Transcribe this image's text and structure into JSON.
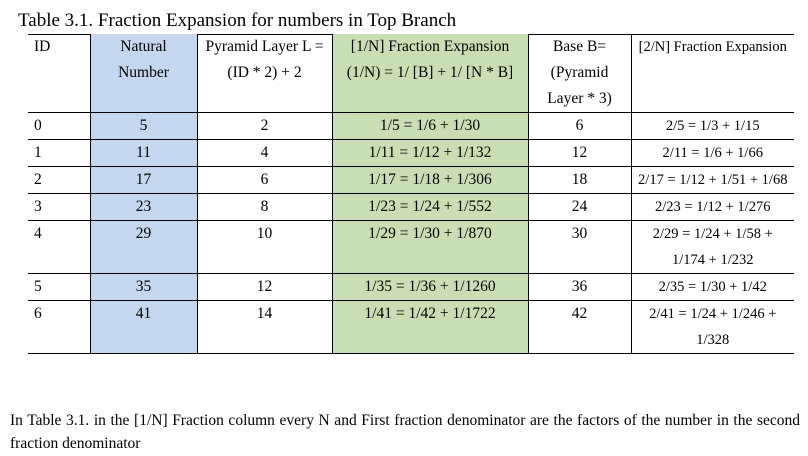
{
  "caption": "Table 3.1. Fraction Expansion for numbers in Top Branch",
  "headers": {
    "id": "ID",
    "natural": "Natural Number",
    "pyramid": "Pyramid Layer L = (ID * 2) + 2",
    "frac1": "[1/N] Fraction Expansion (1/N) = 1/ [B] + 1/ [N * B]",
    "base": "Base B= (Pyramid Layer * 3)",
    "frac2": "[2/N] Fraction Expansion"
  },
  "rows": [
    {
      "id": "0",
      "natural": "5",
      "layer": "2",
      "frac1": "1/5 = 1/6 + 1/30",
      "base": "6",
      "frac2": "2/5    = 1/3 + 1/15"
    },
    {
      "id": "1",
      "natural": "11",
      "layer": "4",
      "frac1": "1/11 = 1/12 + 1/132",
      "base": "12",
      "frac2": "2/11  = 1/6 + 1/66"
    },
    {
      "id": "2",
      "natural": "17",
      "layer": "6",
      "frac1": "1/17 = 1/18 + 1/306",
      "base": "18",
      "frac2": "2/17  = 1/12 + 1/51 + 1/68"
    },
    {
      "id": "3",
      "natural": "23",
      "layer": "8",
      "frac1": "1/23 = 1/24 + 1/552",
      "base": "24",
      "frac2": "2/23  = 1/12 + 1/276"
    },
    {
      "id": "4",
      "natural": "29",
      "layer": "10",
      "frac1": "1/29 = 1/30 + 1/870",
      "base": "30",
      "frac2": "2/29  = 1/24 + 1/58 + 1/174 + 1/232"
    },
    {
      "id": "5",
      "natural": "35",
      "layer": "12",
      "frac1": "1/35 = 1/36 + 1/1260",
      "base": "36",
      "frac2": "2/35  = 1/30 + 1/42"
    },
    {
      "id": "6",
      "natural": "41",
      "layer": "14",
      "frac1": "1/41 = 1/42 + 1/1722",
      "base": "42",
      "frac2": "2/41  = 1/24 + 1/246 + 1/328"
    }
  ],
  "note": "In Table 3.1. in the [1/N] Fraction column every N and First fraction denominator are the factors of the number in the second fraction denominator",
  "colors": {
    "natural_column": "#c5d7ee",
    "fraction_column": "#c9dfb3"
  }
}
